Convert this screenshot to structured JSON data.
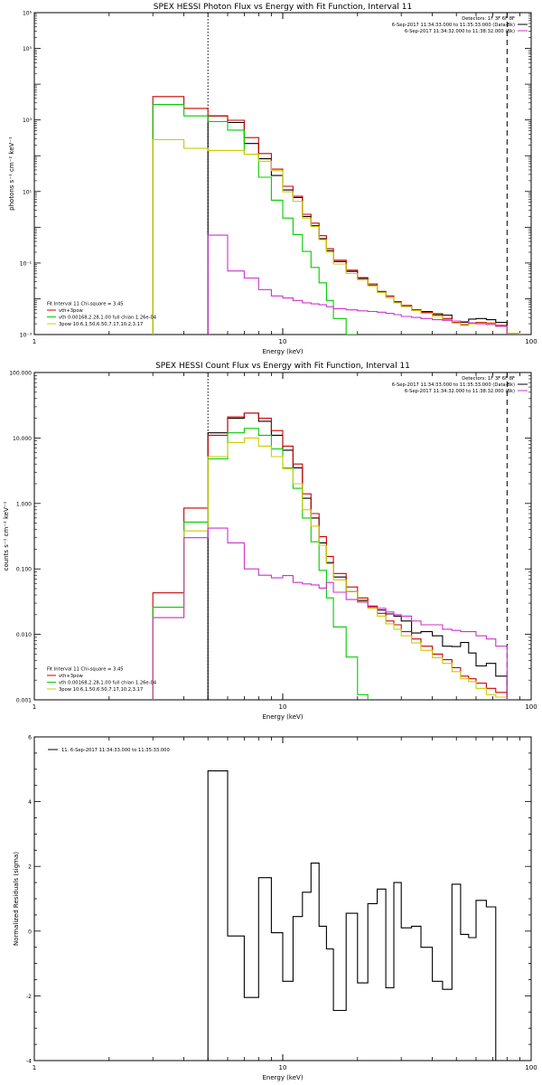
{
  "chart_data": [
    {
      "type": "line",
      "title": "SPEX HESSI Photon Flux vs Energy with Fit Function, Interval 11",
      "xlabel": "Energy (keV)",
      "ylabel": "photons s⁻¹ cm⁻² keV⁻¹",
      "xscale": "log",
      "yscale": "log",
      "xlim": [
        1,
        100
      ],
      "ylim": [
        0.001,
        1000000
      ],
      "xticks": [
        1,
        10,
        100
      ],
      "xticklabels": [
        "1",
        "10",
        "100"
      ],
      "yticks": [
        0.001,
        0.1,
        10,
        1000,
        100000,
        1000000
      ],
      "yticklabels": [
        "10⁻³",
        "10⁻¹",
        "10¹",
        "10³",
        "10⁵",
        "10⁶"
      ],
      "legend_top_right": [
        {
          "text": "Detectors: 1F 3F 6F 8F",
          "color": "#000000"
        },
        {
          "text": "6-Sep-2017 11:34:33.000 to 11:35:33.000 (Data-Bk)",
          "color": "#000000"
        },
        {
          "text": "6-Sep-2017 11:34:32.000 to 11:38:32.000 (Bk)",
          "color": "#cc33cc"
        }
      ],
      "legend_bottom_left": [
        {
          "text": "Fit Interval 11   Chi-square = 3.45",
          "color": "#000000"
        },
        {
          "text": "vth+3pow",
          "color": "#cc0000"
        },
        {
          "text": "vth 0.00168,2.28,1.00  full chian 1.26e-04",
          "color": "#00cc00"
        },
        {
          "text": "3pow 10.6,1.50,6.50,7.17,10.2,3.17",
          "color": "#cccc00"
        }
      ],
      "vlines": [
        {
          "x": 5.0,
          "style": "dotted",
          "color": "#000000"
        },
        {
          "x": 80.0,
          "style": "dashed",
          "color": "#000000"
        }
      ],
      "edges": [
        3.0,
        4.0,
        5.0,
        6.0,
        7.0,
        8.0,
        9.0,
        10.0,
        11.0,
        12.0,
        13.0,
        14.0,
        15.0,
        16.0,
        18.0,
        20.0,
        22.0,
        24.0,
        26.0,
        28.0,
        30.0,
        33.0,
        36.0,
        40.0,
        44.0,
        48.0,
        52.0,
        56.0,
        60.0,
        66.0,
        72.0,
        80.0,
        90.0,
        100.0
      ],
      "series": [
        {
          "name": "Data-Bk",
          "color": "#000000",
          "start_edge": 5,
          "end_edge": 80,
          "values": [
            1300,
            850,
            220,
            82,
            28,
            11,
            6.8,
            2.0,
            1.1,
            0.48,
            0.22,
            0.11,
            0.058,
            0.037,
            0.024,
            0.016,
            0.011,
            0.0078,
            0.0064,
            0.0049,
            0.0044,
            0.0038,
            0.0035,
            0.0024,
            0.0022,
            0.0027,
            0.0028,
            0.0026,
            0.0022
          ]
        },
        {
          "name": "vth+3pow",
          "color": "#cc0000",
          "start_edge": 3,
          "end_edge": 80,
          "values": [
            4500,
            2100,
            1300,
            980,
            320,
            115,
            42,
            14,
            7.4,
            2.3,
            1.3,
            0.58,
            0.25,
            0.12,
            0.063,
            0.039,
            0.026,
            0.016,
            0.012,
            0.0083,
            0.0065,
            0.005,
            0.0042,
            0.0035,
            0.0028,
            0.0022,
            0.0019,
            0.0021,
            0.0022,
            0.0021,
            0.0018
          ]
        },
        {
          "name": "vth",
          "color": "#00cc00",
          "start_edge": 3,
          "end_edge": 30,
          "values": [
            2700,
            1300,
            900,
            520,
            110,
            25,
            5.7,
            1.8,
            0.62,
            0.21,
            0.075,
            0.028,
            0.009,
            0.0028,
            0.001
          ]
        },
        {
          "name": "3pow",
          "color": "#cccc00",
          "start_edge": 3,
          "end_edge": 100,
          "values": [
            280,
            160,
            140,
            140,
            110,
            70,
            38,
            9.8,
            5.3,
            1.8,
            1.05,
            0.45,
            0.2,
            0.094,
            0.051,
            0.034,
            0.023,
            0.015,
            0.011,
            0.0077,
            0.006,
            0.0047,
            0.0039,
            0.0032,
            0.0026,
            0.0021,
            0.0018,
            0.002,
            0.0021,
            0.002,
            0.0017,
            0.0011,
            0.0008
          ]
        },
        {
          "name": "Bk",
          "color": "#cc33cc",
          "start_edge": 5,
          "end_edge": 80,
          "values": [
            0.6,
            0.06,
            0.038,
            0.018,
            0.012,
            0.0105,
            0.009,
            0.0077,
            0.0072,
            0.0068,
            0.006,
            0.0053,
            0.0049,
            0.0046,
            0.0044,
            0.0042,
            0.0039,
            0.0036,
            0.0032,
            0.003,
            0.0028,
            0.0026,
            0.0025,
            0.0024,
            0.0023,
            0.0021,
            0.002,
            0.0019,
            0.0017
          ]
        }
      ]
    },
    {
      "type": "line",
      "title": "SPEX HESSI Count Flux vs Energy with Fit Function, Interval 11",
      "xlabel": "Energy (keV)",
      "ylabel": "counts s⁻¹ cm⁻² keV⁻¹",
      "xscale": "log",
      "yscale": "log",
      "xlim": [
        1,
        100
      ],
      "ylim": [
        0.001,
        100
      ],
      "xticks": [
        1,
        10,
        100
      ],
      "xticklabels": [
        "1",
        "10",
        "100"
      ],
      "yticks": [
        0.001,
        0.01,
        0.1,
        1,
        10,
        100
      ],
      "yticklabels": [
        "0.001",
        "0.010",
        "0.100",
        "1.000",
        "10.000",
        "100.000"
      ],
      "legend_top_right": [
        {
          "text": "Detectors: 1F 3F 6F 8F",
          "color": "#000000"
        },
        {
          "text": "6-Sep-2017 11:34:33.000 to 11:35:33.000 (Data-Bk)",
          "color": "#000000"
        },
        {
          "text": "6-Sep-2017 11:34:32.000 to 11:38:32.000 (Bk)",
          "color": "#cc33cc"
        }
      ],
      "legend_bottom_left": [
        {
          "text": "Fit Interval 11   Chi-square = 3.45",
          "color": "#000000"
        },
        {
          "text": "vth+3pow",
          "color": "#cc0000"
        },
        {
          "text": "vth 0.00168,2.28,1.00  full chian 1.26e-04",
          "color": "#00cc00"
        },
        {
          "text": "3pow 10.6,1.50,6.50,7.17,10.2,3.17",
          "color": "#cccc00"
        }
      ],
      "vlines": [
        {
          "x": 5.0,
          "style": "dotted",
          "color": "#000000"
        },
        {
          "x": 80.0,
          "style": "dashed",
          "color": "#000000"
        }
      ],
      "edges": [
        3.0,
        4.0,
        5.0,
        6.0,
        7.0,
        8.0,
        9.0,
        10.0,
        11.0,
        12.0,
        13.0,
        14.0,
        15.0,
        16.0,
        18.0,
        20.0,
        22.0,
        24.0,
        26.0,
        28.0,
        30.0,
        33.0,
        36.0,
        40.0,
        44.0,
        48.0,
        52.0,
        56.0,
        60.0,
        66.0,
        72.0,
        80.0,
        90.0,
        100.0
      ],
      "series": [
        {
          "name": "Data-Bk",
          "color": "#000000",
          "start_edge": 5,
          "end_edge": 80,
          "values": [
            12.0,
            20.0,
            24.0,
            18.0,
            11.0,
            6.5,
            3.5,
            1.2,
            0.6,
            0.25,
            0.125,
            0.075,
            0.045,
            0.033,
            0.027,
            0.0235,
            0.0205,
            0.019,
            0.016,
            0.0105,
            0.011,
            0.0095,
            0.0066,
            0.0065,
            0.0075,
            0.0052,
            0.0033,
            0.0036,
            0.0023
          ]
        },
        {
          "name": "vth+3pow",
          "color": "#cc0000",
          "start_edge": 3,
          "end_edge": 80,
          "values": [
            0.043,
            0.85,
            11.0,
            21.0,
            24.0,
            20.0,
            13.0,
            7.5,
            4.0,
            1.4,
            0.7,
            0.31,
            0.155,
            0.085,
            0.053,
            0.036,
            0.027,
            0.021,
            0.016,
            0.014,
            0.011,
            0.0085,
            0.0066,
            0.005,
            0.0041,
            0.0031,
            0.0023,
            0.0021,
            0.0018,
            0.0015,
            0.0013
          ]
        },
        {
          "name": "vth",
          "color": "#00cc00",
          "start_edge": 3,
          "end_edge": 30,
          "values": [
            0.026,
            0.52,
            4.8,
            12.0,
            14.0,
            11.0,
            6.8,
            3.5,
            1.7,
            0.6,
            0.26,
            0.095,
            0.036,
            0.013,
            0.0045,
            0.0012
          ]
        },
        {
          "name": "3pow",
          "color": "#cccc00",
          "start_edge": 3,
          "end_edge": 80,
          "values": [
            0.018,
            0.38,
            5.2,
            8.5,
            10.0,
            7.5,
            5.2,
            3.4,
            2.0,
            0.8,
            0.45,
            0.23,
            0.12,
            0.068,
            0.045,
            0.032,
            0.025,
            0.019,
            0.0145,
            0.012,
            0.0095,
            0.0074,
            0.0057,
            0.0044,
            0.0036,
            0.0027,
            0.0021,
            0.0019,
            0.0015,
            0.0012,
            0.0011
          ]
        },
        {
          "name": "Bk",
          "color": "#cc33cc",
          "start_edge": 3,
          "end_edge": 80,
          "values": [
            0.018,
            0.3,
            0.42,
            0.25,
            0.1,
            0.08,
            0.073,
            0.079,
            0.062,
            0.059,
            0.057,
            0.051,
            0.062,
            0.044,
            0.034,
            0.031,
            0.026,
            0.025,
            0.022,
            0.02,
            0.019,
            0.016,
            0.014,
            0.014,
            0.012,
            0.0115,
            0.011,
            0.011,
            0.0095,
            0.0085,
            0.0066
          ]
        }
      ]
    },
    {
      "type": "line",
      "title": "",
      "xlabel": "Energy (keV)",
      "ylabel": "Normalized Residuals (sigma)",
      "xscale": "log",
      "yscale": "linear",
      "xlim": [
        1,
        100
      ],
      "ylim": [
        -4,
        6
      ],
      "xticks": [
        1,
        10,
        100
      ],
      "xticklabels": [
        "1",
        "10",
        "100"
      ],
      "yticks": [
        -4,
        -2,
        0,
        2,
        4,
        6
      ],
      "yticklabels": [
        "-4",
        "-2",
        "0",
        "2",
        "4",
        "6"
      ],
      "legend_top_left": [
        {
          "text": "11.  6-Sep-2017 11:34:33.000 to 11:35:33.000",
          "color": "#000000"
        }
      ],
      "edges": [
        5.0,
        6.0,
        7.0,
        8.0,
        9.0,
        10.0,
        11.0,
        12.0,
        13.0,
        14.0,
        15.0,
        16.0,
        18.0,
        20.0,
        22.0,
        24.0,
        26.0,
        28.0,
        30.0,
        33.0,
        36.0,
        40.0,
        44.0,
        48.0,
        52.0,
        56.0,
        60.0,
        66.0,
        72.0,
        80.0
      ],
      "series": [
        {
          "name": "residuals",
          "color": "#000000",
          "values": [
            4.95,
            -0.15,
            -2.05,
            1.65,
            -0.05,
            -1.55,
            0.45,
            1.2,
            2.1,
            0.15,
            -0.55,
            -2.45,
            0.55,
            -1.6,
            0.85,
            1.3,
            -1.75,
            1.5,
            0.1,
            0.15,
            -0.5,
            -1.55,
            -1.8,
            1.45,
            -0.1,
            -0.2,
            0.95,
            0.75
          ]
        }
      ]
    }
  ]
}
